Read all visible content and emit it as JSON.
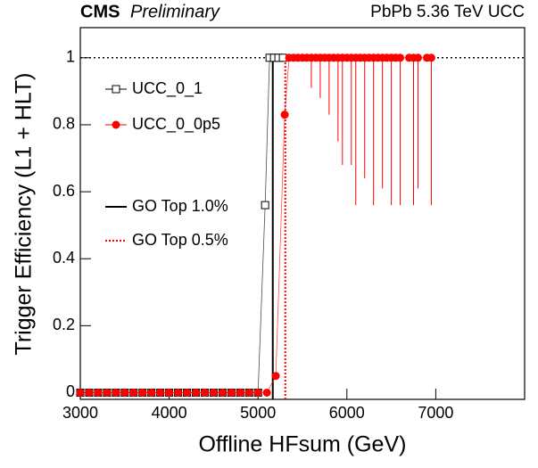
{
  "chart_data": {
    "type": "line",
    "title": "CMS",
    "subtitle": "Preliminary",
    "annotation": "PbPb 5.36 TeV UCC",
    "x_label": "Offline HFsum (GeV)",
    "y_label": "Trigger Efficiency (L1 + HLT)",
    "xlim": [
      3000,
      8000
    ],
    "ylim": [
      -0.02,
      1.09
    ],
    "xticks": [
      3000,
      4000,
      5000,
      6000,
      7000
    ],
    "yticks": [
      0,
      0.2,
      0.4,
      0.6,
      0.8,
      1
    ],
    "reference_y": 1,
    "series": [
      {
        "name": "UCC_0_1",
        "color": "#000000",
        "marker": "open-square",
        "x": [
          3000,
          3100,
          3200,
          3300,
          3400,
          3500,
          3600,
          3700,
          3800,
          3900,
          4000,
          4100,
          4200,
          4300,
          4400,
          4500,
          4600,
          4700,
          4800,
          4900,
          5000,
          5080,
          5130,
          5180,
          5230,
          5280
        ],
        "values": [
          0,
          0,
          0,
          0,
          0,
          0,
          0,
          0,
          0,
          0,
          0,
          0,
          0,
          0,
          0,
          0,
          0,
          0,
          0,
          0,
          0,
          0.56,
          1,
          1,
          1,
          1
        ]
      },
      {
        "name": "UCC_0_0p5",
        "color": "#ff0000",
        "marker": "filled-circle",
        "x": [
          3000,
          3100,
          3200,
          3300,
          3400,
          3500,
          3600,
          3700,
          3800,
          3900,
          4000,
          4100,
          4200,
          4300,
          4400,
          4500,
          4600,
          4700,
          4800,
          4900,
          5000,
          5100,
          5200,
          5300,
          5350,
          5400,
          5450,
          5500,
          5550,
          5600,
          5650,
          5700,
          5750,
          5800,
          5850,
          5900,
          5950,
          6000,
          6050,
          6100,
          6150,
          6200,
          6250,
          6300,
          6350,
          6400,
          6450,
          6500,
          6550,
          6600,
          6700,
          6750,
          6800,
          6900,
          6950
        ],
        "values": [
          0,
          0,
          0,
          0,
          0,
          0,
          0,
          0,
          0,
          0,
          0,
          0,
          0,
          0,
          0,
          0,
          0,
          0,
          0,
          0,
          0,
          0,
          0.05,
          0.83,
          1,
          1,
          1,
          1,
          1,
          1,
          1,
          1,
          1,
          1,
          1,
          1,
          1,
          1,
          1,
          1,
          1,
          1,
          1,
          1,
          1,
          1,
          1,
          1,
          1,
          1,
          1,
          1,
          1,
          1,
          1
        ],
        "errors_low": [
          0,
          0,
          0,
          0,
          0,
          0,
          0,
          0,
          0,
          0,
          0,
          0,
          0,
          0,
          0,
          0,
          0,
          0,
          0,
          0,
          0,
          0,
          0,
          0,
          0,
          0,
          0,
          0,
          0,
          0.09,
          0,
          0.12,
          0,
          0.17,
          0,
          0.25,
          0.32,
          0,
          0.32,
          0.44,
          0,
          0.36,
          0,
          0.44,
          0,
          0.39,
          0,
          0.44,
          0,
          0.44,
          0,
          0.44,
          0.39,
          0,
          0.44
        ]
      }
    ],
    "vlines": [
      {
        "name": "GO Top 1.0%",
        "x": 5166,
        "color": "#000000",
        "style": "solid"
      },
      {
        "name": "GO Top 0.5%",
        "x": 5307,
        "color": "#ff0000",
        "style": "dotted"
      }
    ]
  }
}
